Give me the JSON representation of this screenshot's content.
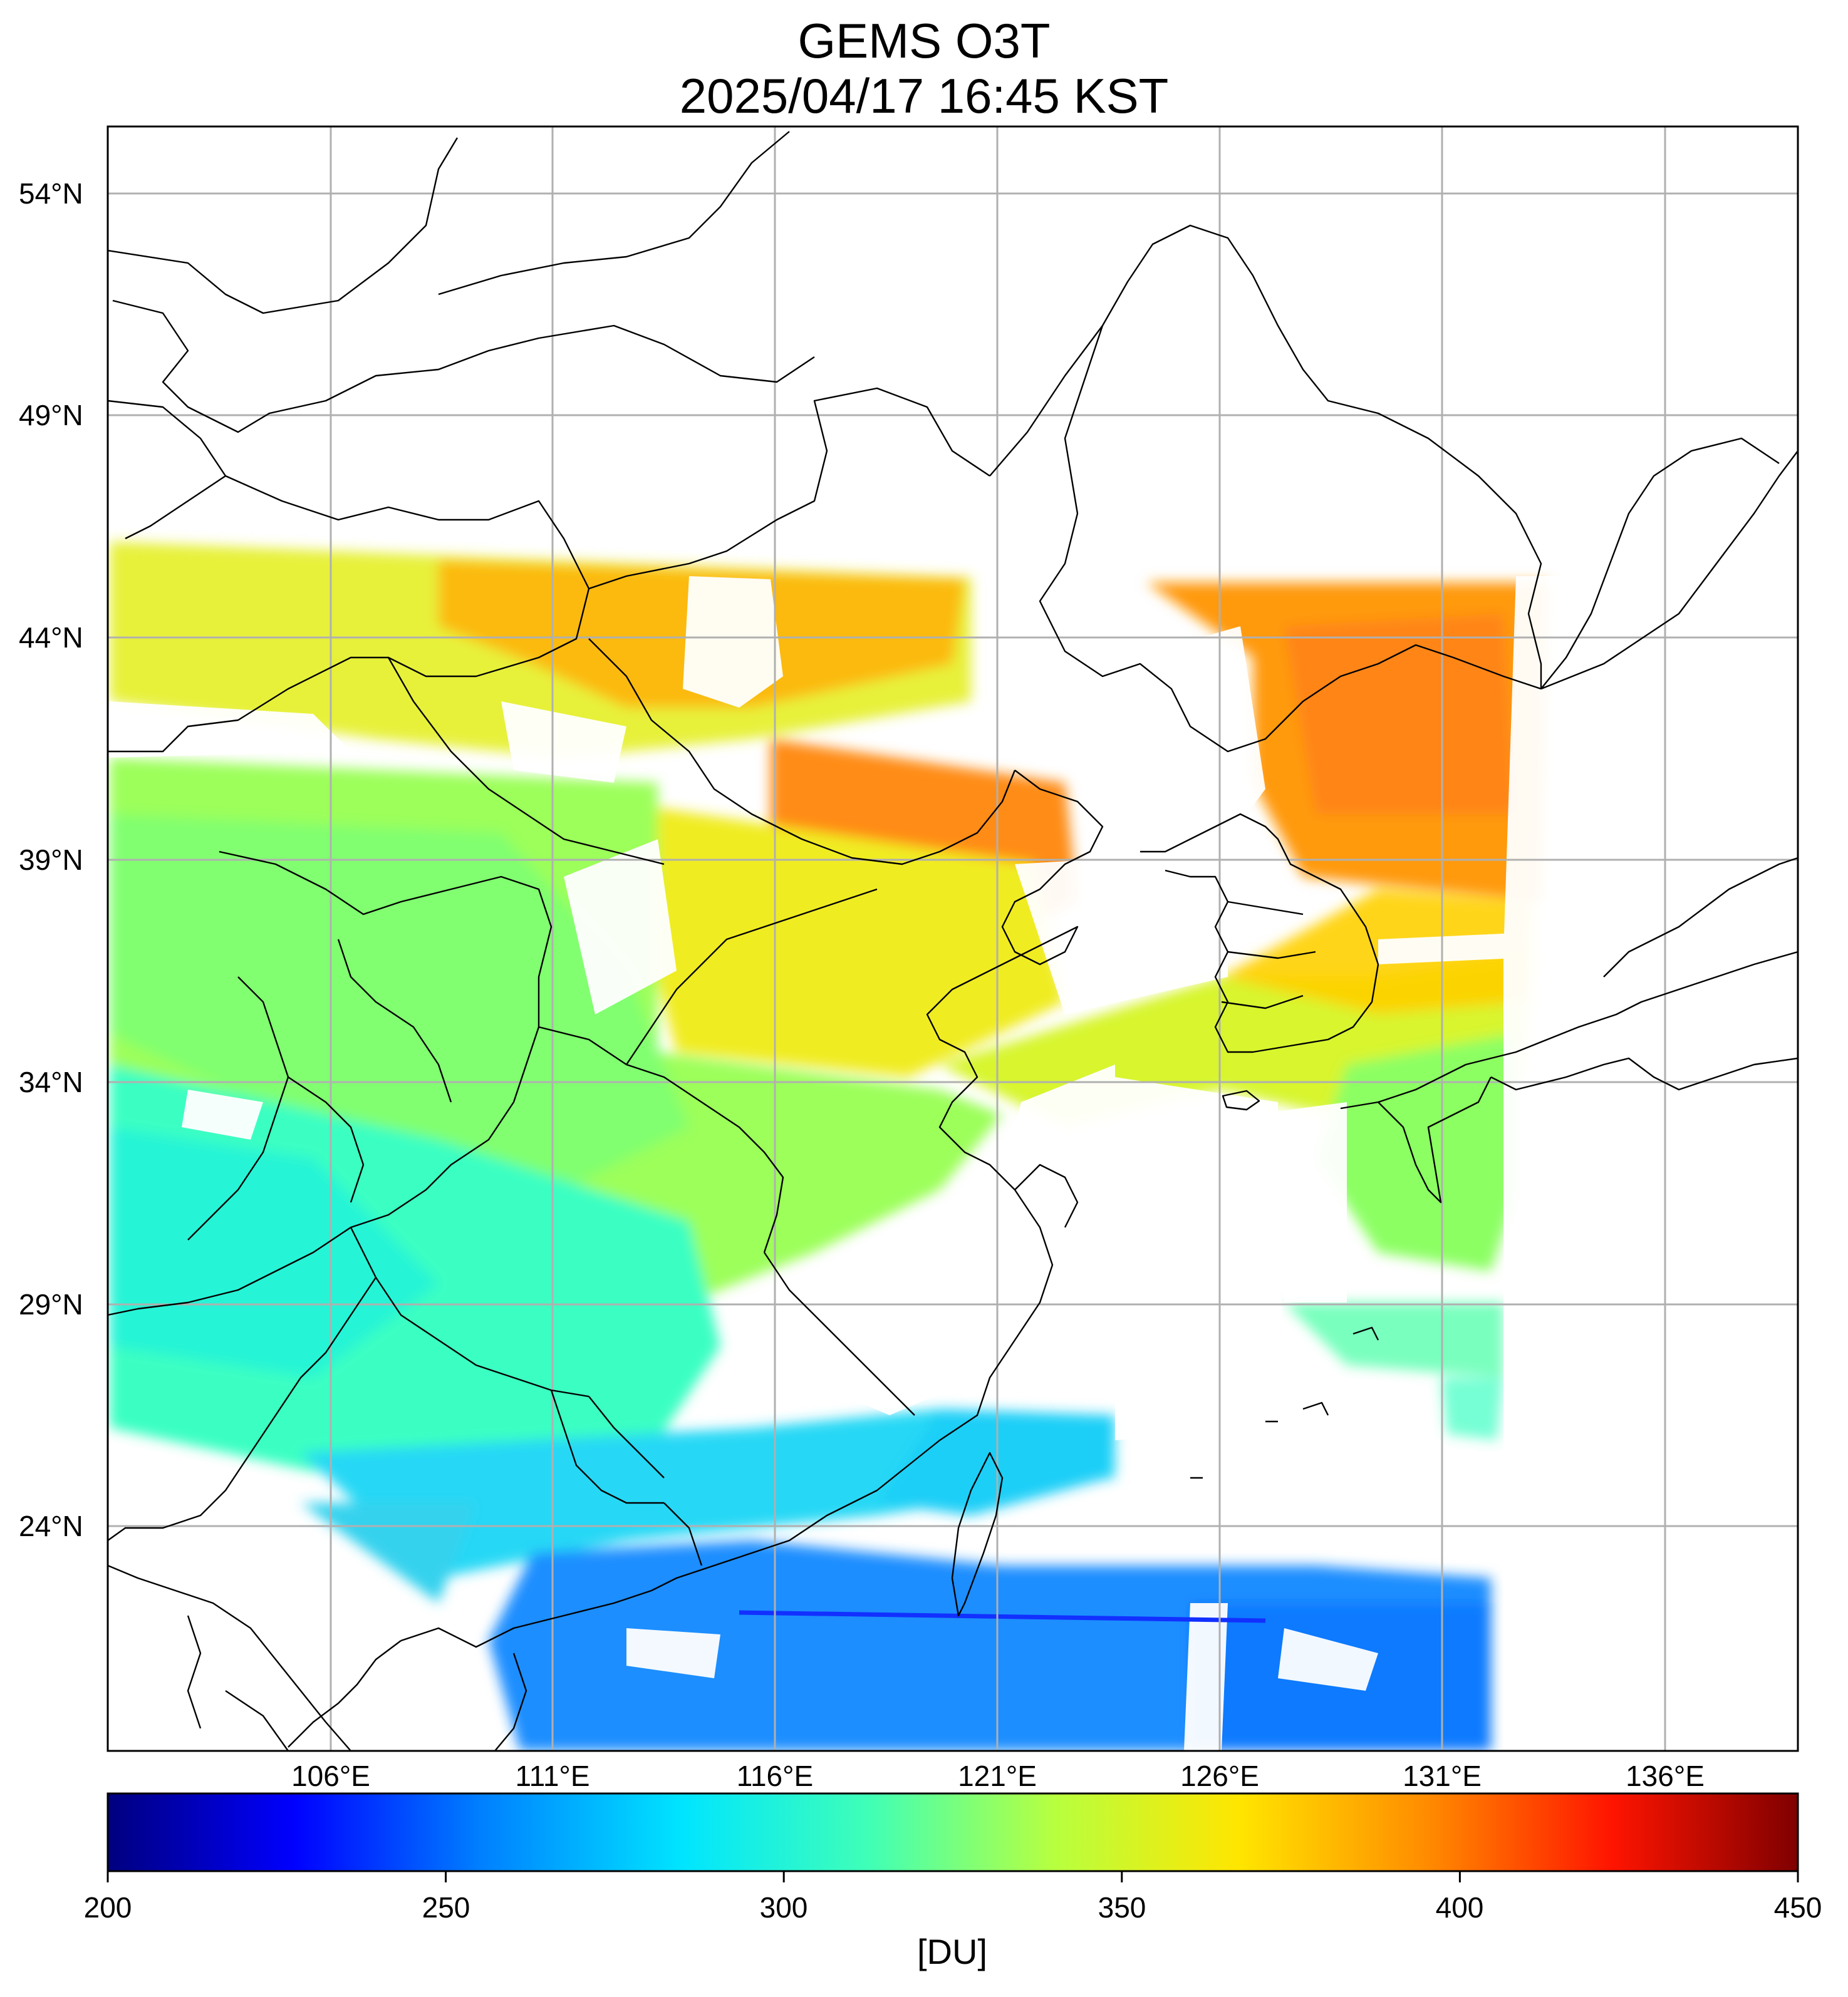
{
  "title": {
    "line1": "GEMS O3T",
    "line2": "2025/04/17 16:45 KST"
  },
  "map": {
    "product": "O3T",
    "lat_labels": [
      "54°N",
      "49°N",
      "44°N",
      "39°N",
      "34°N",
      "29°N",
      "24°N"
    ],
    "lon_labels": [
      "106°E",
      "111°E",
      "116°E",
      "121°E",
      "126°E",
      "131°E",
      "136°E"
    ],
    "grid": true
  },
  "colorbar": {
    "min": 200,
    "max": 450,
    "tick_labels": [
      "200",
      "250",
      "300",
      "350",
      "400",
      "450"
    ],
    "units": "[DU]",
    "colormap": [
      "#00007f",
      "#0000ff",
      "#007fff",
      "#00e5ff",
      "#3fffb7",
      "#b7ff3f",
      "#ffe500",
      "#ff8c00",
      "#ff1400",
      "#7f0000"
    ]
  },
  "colors": {
    "grid": "#b0b0b0",
    "coast": "#000000",
    "frame": "#000000"
  }
}
